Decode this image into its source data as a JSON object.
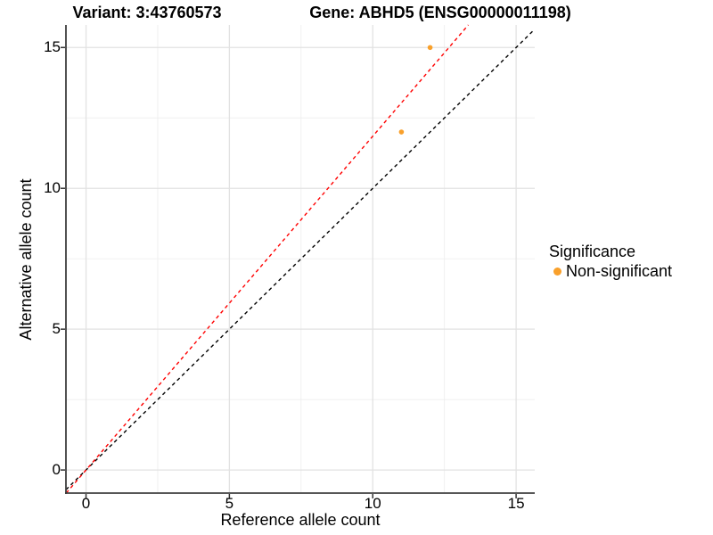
{
  "figure": {
    "title_left": "Variant: 3:43760573",
    "title_right": "Gene: ABHD5 (ENSG00000011198)"
  },
  "legend": {
    "title": "Significance",
    "items": [
      {
        "label": "Non-significant",
        "color": "#F9A02B"
      }
    ],
    "position": "right"
  },
  "chart_data": {
    "type": "scatter",
    "title": "Variant: 3:43760573   Gene: ABHD5 (ENSG00000011198)",
    "xlabel": "Reference allele count",
    "ylabel": "Alternative allele count",
    "xlim": [
      -0.7,
      15.65
    ],
    "ylim": [
      -0.82,
      15.8
    ],
    "x_ticks": [
      0,
      5,
      10,
      15
    ],
    "y_ticks": [
      0,
      5,
      10,
      15
    ],
    "x_minor_ticks": [
      2.5,
      7.5,
      12.5
    ],
    "y_minor_ticks": [
      2.5,
      7.5,
      12.5
    ],
    "grid": "major+minor",
    "legend_position": "right",
    "series": [
      {
        "name": "Non-significant",
        "color": "#F9A02B",
        "points": [
          {
            "x": 11,
            "y": 12
          },
          {
            "x": 12,
            "y": 15
          }
        ]
      }
    ],
    "reference_lines": [
      {
        "name": "identity y=x",
        "slope": 1.0,
        "intercept": 0,
        "color": "#000000",
        "dashed": true
      },
      {
        "name": "expected ratio",
        "slope": 1.185,
        "intercept": 0,
        "color": "#FF0000",
        "dashed": true
      }
    ],
    "point_radius_px": 2.8,
    "colors": {
      "major_grid": "#E2E2E2",
      "minor_grid": "#EFEFEF",
      "axis_line": "#3F3F3F",
      "tick_mark": "#333333",
      "panel_bg": "#FFFFFF"
    }
  }
}
